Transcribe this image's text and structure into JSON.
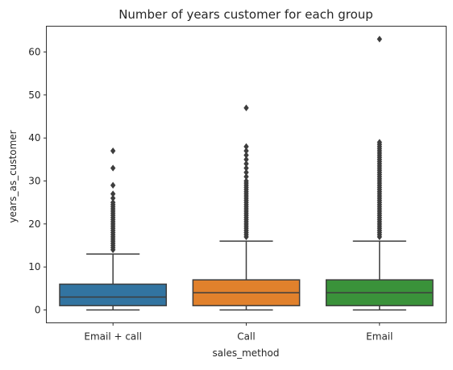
{
  "chart_data": {
    "type": "box",
    "title": "Number of years customer for each group",
    "xlabel": "sales_method",
    "ylabel": "years_as_customer",
    "ylim": [
      -3,
      66
    ],
    "yticks": [
      0,
      10,
      20,
      30,
      40,
      50,
      60
    ],
    "grid": false,
    "legend": "none",
    "categories": [
      "Email + call",
      "Call",
      "Email"
    ],
    "colors": [
      "#3274a1",
      "#e1812c",
      "#3a923a"
    ],
    "edge_color": "#3d3d3d",
    "boxes": [
      {
        "category": "Email + call",
        "whisker_low": 0,
        "q1": 1,
        "median": 3,
        "q3": 6,
        "whisker_high": 13,
        "outliers": [
          14,
          14.5,
          15,
          15.5,
          16,
          16.5,
          17,
          17.5,
          18,
          18.5,
          19,
          19.5,
          20,
          20.5,
          21,
          21.5,
          22,
          22.5,
          23,
          23.5,
          24,
          24.5,
          25,
          26,
          27,
          29,
          33,
          37
        ]
      },
      {
        "category": "Call",
        "whisker_low": 0,
        "q1": 1,
        "median": 4,
        "q3": 7,
        "whisker_high": 16,
        "outliers": [
          17,
          17.5,
          18,
          18.5,
          19,
          19.5,
          20,
          20.5,
          21,
          21.5,
          22,
          22.5,
          23,
          23.5,
          24,
          24.5,
          25,
          25.5,
          26,
          26.5,
          27,
          27.5,
          28,
          28.5,
          29,
          29.5,
          30,
          31,
          32,
          33,
          34,
          35,
          36,
          37,
          38,
          47
        ]
      },
      {
        "category": "Email",
        "whisker_low": 0,
        "q1": 1,
        "median": 4,
        "q3": 7,
        "whisker_high": 16,
        "outliers": [
          17,
          17.5,
          18,
          18.5,
          19,
          19.5,
          20,
          20.5,
          21,
          21.5,
          22,
          22.5,
          23,
          23.5,
          24,
          24.5,
          25,
          25.5,
          26,
          26.5,
          27,
          27.5,
          28,
          28.5,
          29,
          29.5,
          30,
          30.5,
          31,
          31.5,
          32,
          32.5,
          33,
          33.5,
          34,
          34.5,
          35,
          35.5,
          36,
          36.5,
          37,
          37.5,
          38,
          38.5,
          39,
          63
        ]
      }
    ]
  }
}
